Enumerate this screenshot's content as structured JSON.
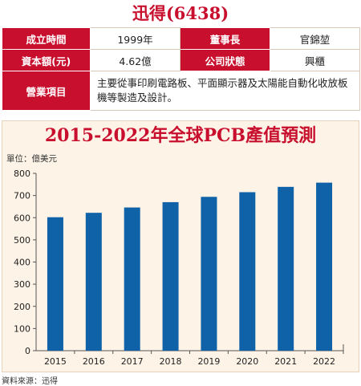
{
  "company": {
    "title": "迅得(6438)"
  },
  "info": {
    "founded_label": "成立時間",
    "founded_value": "1999年",
    "chairman_label": "董事長",
    "chairman_value": "官錦堃",
    "capital_label": "資本額(元)",
    "capital_value": "4.62億",
    "status_label": "公司狀態",
    "status_value": "興櫃",
    "business_label": "營業項目",
    "business_value": "主要從事印刷電路板、平面顯示器及太陽能自動化收放板機等製造及設計。"
  },
  "colors": {
    "accent": "#c8102e",
    "bar": "#0f62a8",
    "panel": "#fdf3e7"
  },
  "chart_data": {
    "type": "bar",
    "title": "2015-2022年全球PCB產值預測",
    "unit_label": "單位：億美元",
    "categories": [
      "2015",
      "2016",
      "2017",
      "2018",
      "2019",
      "2020",
      "2021",
      "2022"
    ],
    "values": [
      602,
      622,
      646,
      670,
      694,
      715,
      739,
      758
    ],
    "ylim": [
      0,
      800
    ],
    "yticks": [
      0,
      100,
      200,
      300,
      400,
      500,
      600,
      700,
      800
    ],
    "grid": false,
    "source": "資料來源：迅得"
  }
}
